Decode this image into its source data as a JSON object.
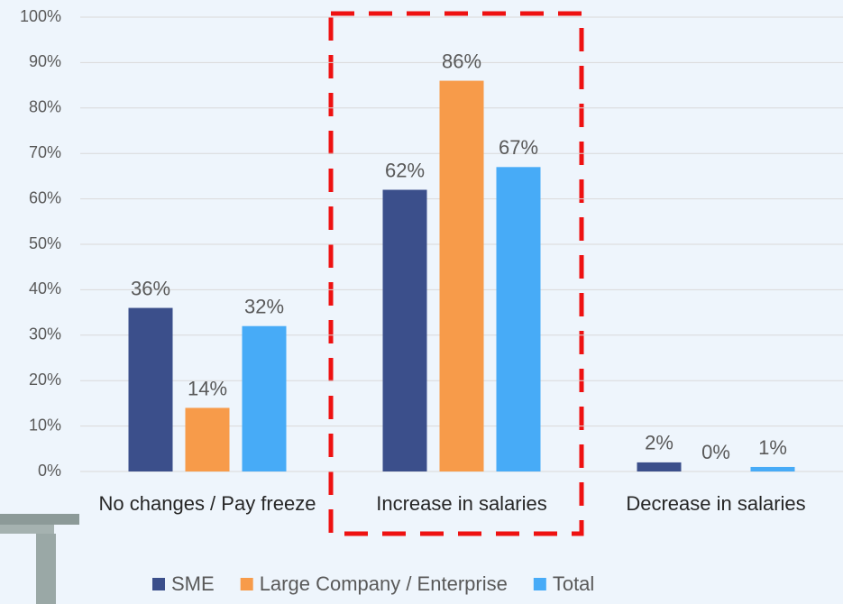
{
  "chart_data": {
    "type": "bar",
    "categories": [
      "No changes / Pay freeze",
      "Increase in salaries",
      "Decrease in salaries"
    ],
    "series": [
      {
        "name": "SME",
        "color": "#3b4f8b",
        "values": [
          36,
          62,
          2
        ],
        "value_labels": [
          "36%",
          "62%",
          "2%"
        ]
      },
      {
        "name": "Large Company / Enterprise",
        "color": "#f79b4a",
        "values": [
          14,
          86,
          0
        ],
        "value_labels": [
          "14%",
          "86%",
          "0%"
        ]
      },
      {
        "name": "Total",
        "color": "#47abf7",
        "values": [
          32,
          67,
          1
        ],
        "value_labels": [
          "32%",
          "67%",
          "1%"
        ]
      }
    ],
    "ylim": [
      0,
      100
    ],
    "yticks": [
      {
        "value": 0,
        "label": "0%"
      },
      {
        "value": 10,
        "label": "10%"
      },
      {
        "value": 20,
        "label": "20%"
      },
      {
        "value": 30,
        "label": "30%"
      },
      {
        "value": 40,
        "label": "40%"
      },
      {
        "value": 50,
        "label": "50%"
      },
      {
        "value": 60,
        "label": "60%"
      },
      {
        "value": 70,
        "label": "70%"
      },
      {
        "value": 80,
        "label": "80%"
      },
      {
        "value": 90,
        "label": "90%"
      },
      {
        "value": 100,
        "label": "100%"
      }
    ],
    "grid": true
  }
}
